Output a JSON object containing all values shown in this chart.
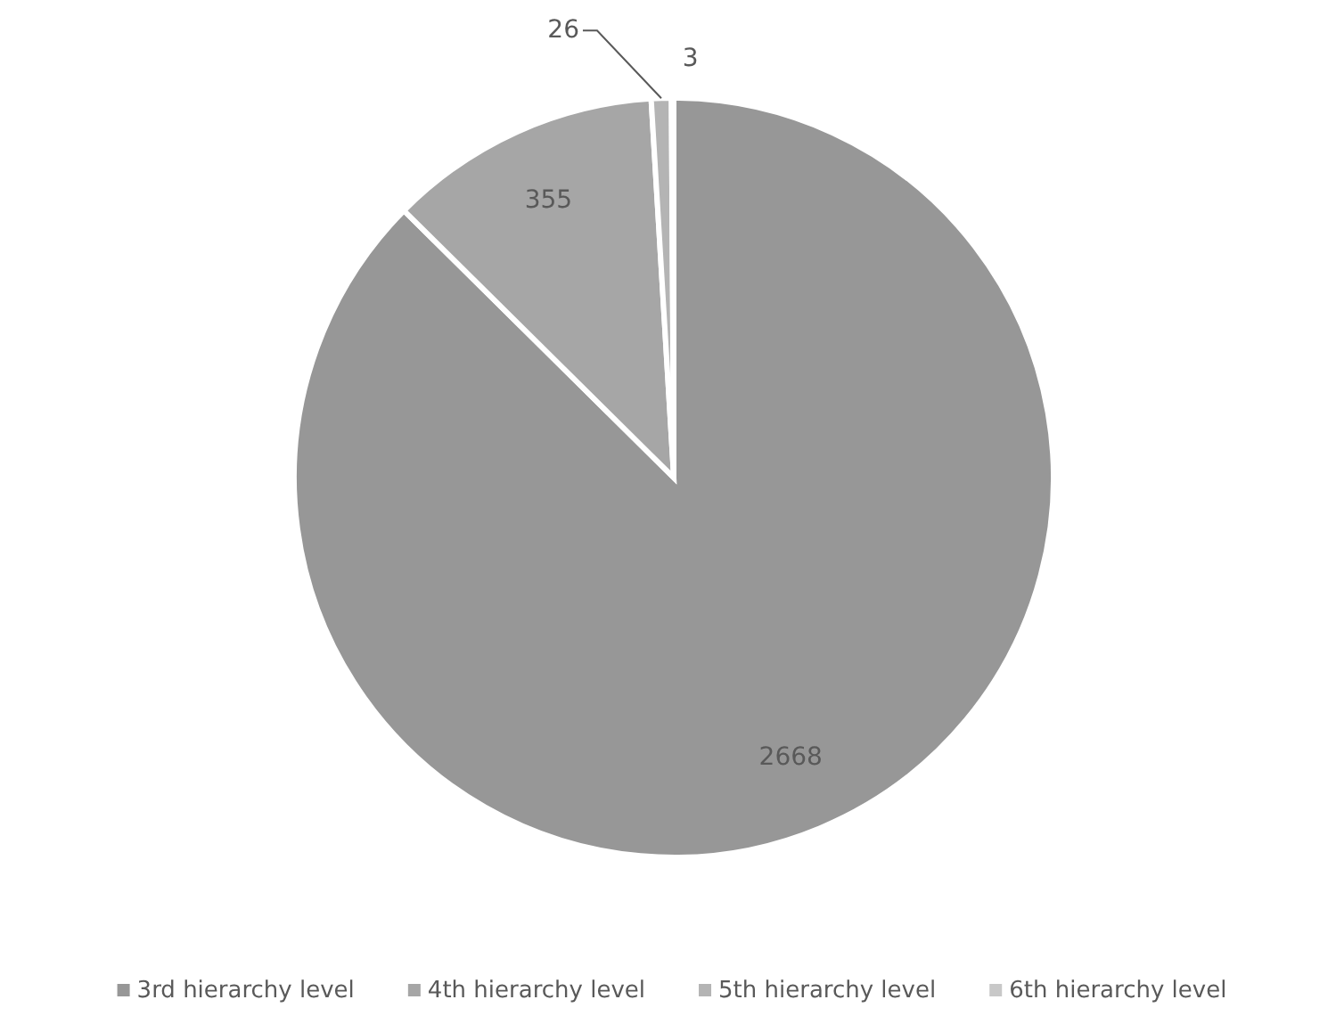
{
  "chart_data": {
    "type": "pie",
    "categories": [
      "3rd hierarchy level",
      "4th hierarchy level",
      "5th hierarchy level",
      "6th hierarchy level"
    ],
    "values": [
      2668,
      355,
      26,
      3
    ],
    "colors": [
      "#979797",
      "#a6a6a6",
      "#b4b4b4",
      "#c8c8c8"
    ],
    "data_labels": true,
    "legend": "bottom"
  }
}
